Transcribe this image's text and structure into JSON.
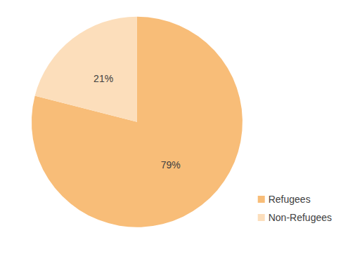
{
  "chart_data": {
    "type": "pie",
    "categories": [
      "Refugees",
      "Non-Refugees"
    ],
    "values": [
      79,
      21
    ],
    "value_labels": [
      "79%",
      "21%"
    ],
    "colors": [
      "#f8bd78",
      "#fcdebb"
    ],
    "data_labels": true,
    "legend": "lower right"
  }
}
